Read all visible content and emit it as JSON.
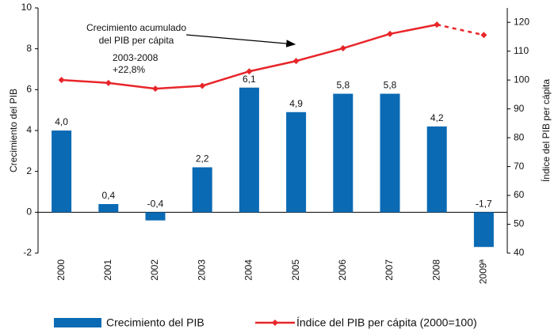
{
  "chart_data": {
    "type": "bar-line",
    "categories": [
      "2000",
      "2001",
      "2002",
      "2003",
      "2004",
      "2005",
      "2006",
      "2007",
      "2008",
      "2009ª"
    ],
    "series": [
      {
        "name": "Crecimiento del PIB",
        "type": "bar",
        "color": "#0a6ab4",
        "values": [
          4.0,
          0.4,
          -0.4,
          2.2,
          6.1,
          4.9,
          5.8,
          5.8,
          4.2,
          -1.7
        ],
        "value_labels": [
          "4,0",
          "0,4",
          "-0,4",
          "2,2",
          "6,1",
          "4,9",
          "5,8",
          "5,8",
          "4,2",
          "-1,7"
        ]
      },
      {
        "name": "Índice del PIB per cápita (2000=100)",
        "type": "line",
        "axis": "y2",
        "color": "#e8262a",
        "dashed_last_segment": true,
        "values": [
          100,
          99,
          97,
          98,
          103,
          106.6,
          111,
          116,
          119.2,
          115.6
        ]
      }
    ],
    "ylabel": "Crecimiento del PIB",
    "y2label": "Índice del PIB per cápita",
    "ylim": [
      -2,
      10
    ],
    "yticks": [
      -2,
      0,
      2,
      4,
      6,
      8,
      10
    ],
    "y2lim": [
      40,
      125
    ],
    "y2ticks": [
      40,
      50,
      60,
      70,
      80,
      90,
      100,
      110,
      120
    ],
    "annotation": {
      "lines": [
        "Crecimiento acumulado",
        "del PIB per cápita"
      ],
      "detail_lines": [
        "2003-2008",
        "+22,8%"
      ]
    }
  }
}
